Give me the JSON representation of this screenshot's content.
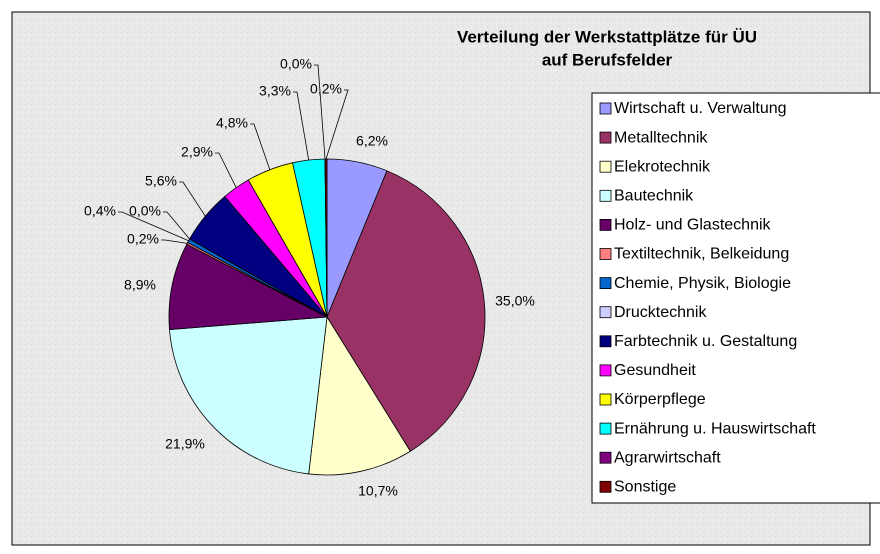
{
  "chart_data": {
    "type": "pie",
    "title": "Verteilung der Werkstattplätze für ÜU",
    "subtitle": "auf Berufsfelder",
    "categories": [
      "Wirtschaft u. Verwaltung",
      "Metalltechnik",
      "Elekrotechnik",
      "Bautechnik",
      "Holz- und Glastechnik",
      "Textiltechnik, Belkeidung",
      "Chemie, Physik, Biologie",
      "Drucktechnik",
      "Farbtechnik u. Gestaltung",
      "Gesundheit",
      "Körperpflege",
      "Ernährung u. Hauswirtschaft",
      "Agrarwirtschaft",
      "Sonstige"
    ],
    "values": [
      6.2,
      35.0,
      10.7,
      21.9,
      8.9,
      0.2,
      0.4,
      0.0,
      5.6,
      2.9,
      4.8,
      3.3,
      0.0,
      0.2
    ],
    "value_labels": [
      "6,2%",
      "35,0%",
      "10,7%",
      "21,9%",
      "8,9%",
      "0,2%",
      "0,4%",
      "0,0%",
      "5,6%",
      "2,9%",
      "4,8%",
      "3,3%",
      "0,0%",
      "0,2%"
    ],
    "colors": [
      "#9999ff",
      "#993366",
      "#ffffcc",
      "#ccffff",
      "#660066",
      "#ff8080",
      "#0066cc",
      "#ccccff",
      "#000080",
      "#ff00ff",
      "#ffff00",
      "#00ffff",
      "#800080",
      "#800000"
    ],
    "legend": "right"
  }
}
